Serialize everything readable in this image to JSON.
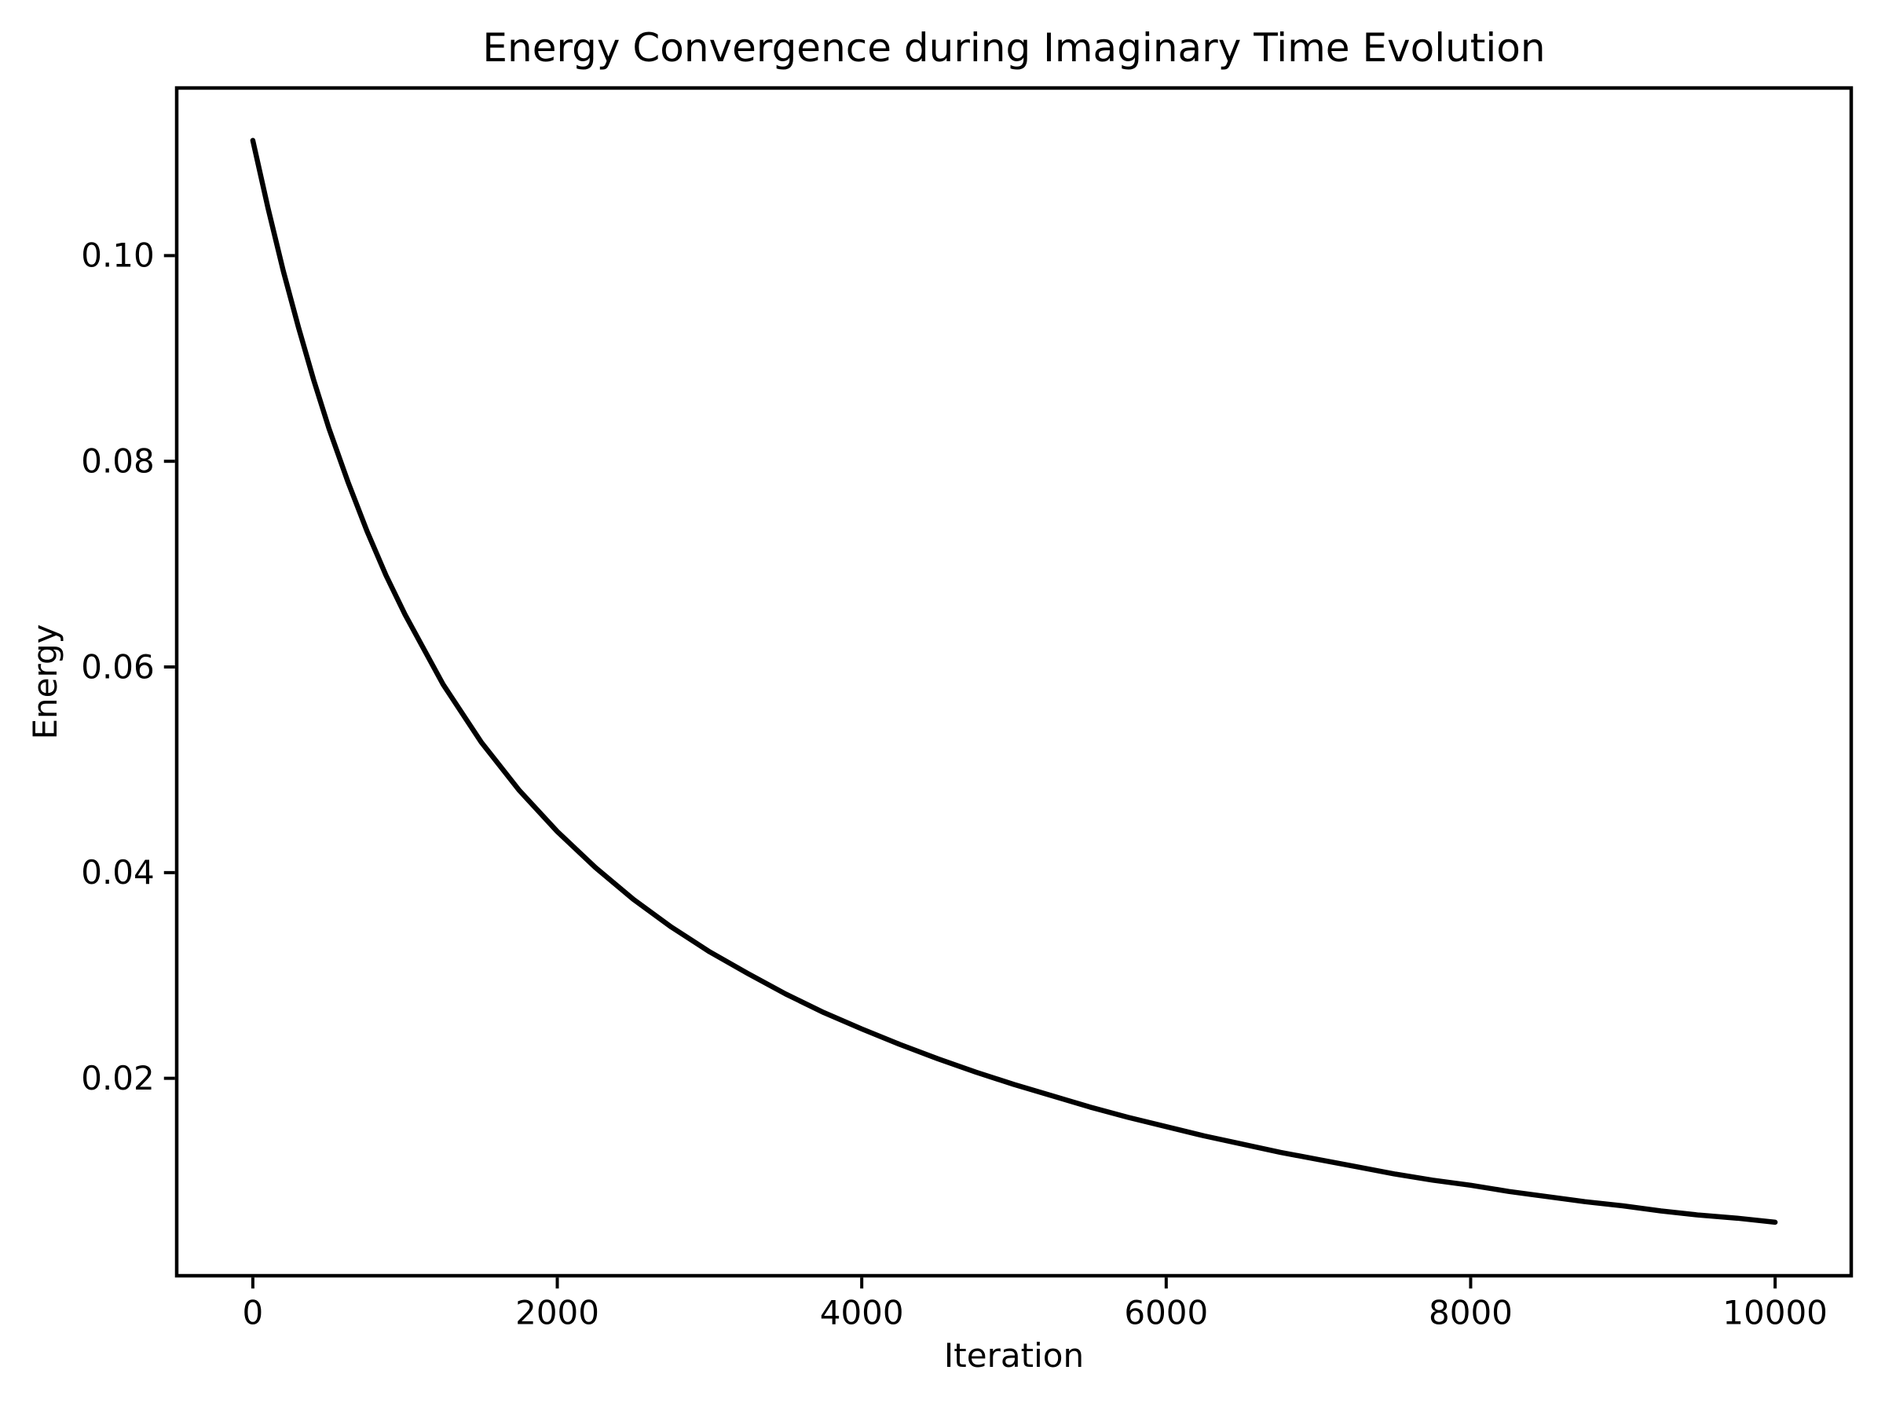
{
  "figure": {
    "background": "#ffffff",
    "text_color": "#000000"
  },
  "chart_data": {
    "type": "line",
    "title": "Energy Convergence during Imaginary Time Evolution",
    "xlabel": "Iteration",
    "ylabel": "Energy",
    "xlim": [
      -500,
      10500
    ],
    "ylim": [
      0.0008,
      0.1163
    ],
    "x_ticks": [
      0,
      2000,
      4000,
      6000,
      8000,
      10000
    ],
    "x_tick_labels": [
      "0",
      "2000",
      "4000",
      "6000",
      "8000",
      "10000"
    ],
    "y_ticks": [
      0.02,
      0.04,
      0.06,
      0.08,
      0.1
    ],
    "y_tick_labels": [
      "0.02",
      "0.04",
      "0.06",
      "0.08",
      "0.10"
    ],
    "grid": false,
    "legend": null,
    "series": [
      {
        "name": "energy",
        "color": "#000000",
        "line_width": 6.5,
        "x": [
          0,
          100,
          200,
          300,
          400,
          500,
          625,
          750,
          875,
          1000,
          1250,
          1500,
          1750,
          2000,
          2250,
          2500,
          2750,
          3000,
          3250,
          3500,
          3750,
          4000,
          4250,
          4500,
          4750,
          5000,
          5250,
          5500,
          5750,
          6000,
          6250,
          6500,
          6750,
          7000,
          7250,
          7500,
          7750,
          8000,
          8250,
          8500,
          8750,
          9000,
          9250,
          9500,
          9750,
          10000
        ],
        "y": [
          0.1112,
          0.1046,
          0.0985,
          0.093,
          0.0879,
          0.0832,
          0.078,
          0.0732,
          0.0689,
          0.0651,
          0.0583,
          0.0527,
          0.048,
          0.044,
          0.0405,
          0.0374,
          0.0347,
          0.0323,
          0.0302,
          0.0282,
          0.0264,
          0.0248,
          0.0233,
          0.0219,
          0.0206,
          0.0194,
          0.0183,
          0.0172,
          0.0162,
          0.0153,
          0.0144,
          0.0136,
          0.0128,
          0.0121,
          0.0114,
          0.0107,
          0.0101,
          0.0096,
          0.009,
          0.0085,
          0.008,
          0.0076,
          0.0071,
          0.0067,
          0.0064,
          0.006
        ]
      }
    ]
  }
}
